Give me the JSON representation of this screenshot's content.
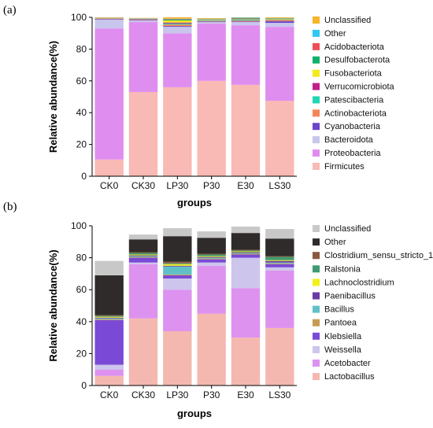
{
  "chart_data": [
    {
      "panel_label": "(a)",
      "type": "bar",
      "stacked": true,
      "categories": [
        "CK0",
        "CK30",
        "LP30",
        "P30",
        "E30",
        "LS30"
      ],
      "xlabel": "groups",
      "ylabel": "Relative abundance(%)",
      "ylim": [
        0,
        100
      ],
      "yticks": [
        0,
        20,
        40,
        60,
        80,
        100
      ],
      "legend_position": "right",
      "series": [
        {
          "name": "Firmicutes",
          "color": "#f9b9b4",
          "values": [
            10.5,
            53,
            56,
            60,
            57.5,
            47.5
          ]
        },
        {
          "name": "Proteobacteria",
          "color": "#df8ef0",
          "values": [
            82.5,
            44,
            34,
            36,
            37.5,
            46.5
          ]
        },
        {
          "name": "Bacteroidota",
          "color": "#c8c6ec",
          "values": [
            5.5,
            1,
            4,
            1,
            2,
            2.5
          ]
        },
        {
          "name": "Cyanobacteria",
          "color": "#6c44c9",
          "values": [
            0.4,
            0.3,
            0.5,
            0.3,
            0.4,
            1
          ]
        },
        {
          "name": "Actinobacteriota",
          "color": "#f4855b",
          "values": [
            0.3,
            0.3,
            1,
            0.3,
            0.6,
            0.6
          ]
        },
        {
          "name": "Patescibacteria",
          "color": "#20d6b0",
          "values": [
            0.1,
            0.2,
            0.6,
            0.3,
            0.6,
            0.2
          ]
        },
        {
          "name": "Verrucomicrobiota",
          "color": "#c21f8a",
          "values": [
            0.1,
            0.2,
            0.6,
            0.2,
            0.2,
            0.2
          ]
        },
        {
          "name": "Fusobacteriota",
          "color": "#f2ea1c",
          "values": [
            0.1,
            0.1,
            1.3,
            0.3,
            0.2,
            0.4
          ]
        },
        {
          "name": "Desulfobacterota",
          "color": "#12b06a",
          "values": [
            0.1,
            0.1,
            0.5,
            0.3,
            0.3,
            0.3
          ]
        },
        {
          "name": "Acidobacteriota",
          "color": "#ef4c56",
          "values": [
            0.1,
            0.1,
            0.3,
            0.2,
            0.2,
            0.2
          ]
        },
        {
          "name": "Other",
          "color": "#2ec8f0",
          "values": [
            0.1,
            0.1,
            0.3,
            0.2,
            0.3,
            0.2
          ]
        },
        {
          "name": "Unclassified",
          "color": "#f8b42a",
          "values": [
            0.2,
            0.2,
            0.9,
            0.4,
            0.2,
            0.4
          ]
        }
      ]
    },
    {
      "panel_label": "(b)",
      "type": "bar",
      "stacked": true,
      "categories": [
        "CK0",
        "CK30",
        "LP30",
        "P30",
        "E30",
        "LS30"
      ],
      "xlabel": "groups",
      "ylabel": "Relative abundance(%)",
      "ylim": [
        0,
        100
      ],
      "yticks": [
        0,
        20,
        40,
        60,
        80,
        100
      ],
      "legend_position": "right",
      "series": [
        {
          "name": "Lactobacillus",
          "color": "#f4b8b0",
          "values": [
            6,
            42,
            34,
            45,
            30,
            36
          ]
        },
        {
          "name": "Acetobacter",
          "color": "#dd92ef",
          "values": [
            4,
            34,
            26,
            30,
            31,
            36
          ]
        },
        {
          "name": "Weissella",
          "color": "#cdc5ec",
          "values": [
            3,
            1,
            7,
            2,
            19,
            2
          ]
        },
        {
          "name": "Klebsiella",
          "color": "#7a4ad6",
          "values": [
            28,
            3,
            2,
            2,
            2,
            2
          ]
        },
        {
          "name": "Pantoea",
          "color": "#c79a52",
          "values": [
            0.5,
            0.5,
            0.5,
            0.5,
            0.5,
            0.5
          ]
        },
        {
          "name": "Bacillus",
          "color": "#5fc1c7",
          "values": [
            0.5,
            0.5,
            5,
            0.5,
            0.5,
            0.5
          ]
        },
        {
          "name": "Paenibacillus",
          "color": "#6a3aa2",
          "values": [
            0.5,
            0.5,
            0.5,
            0.5,
            0.5,
            1
          ]
        },
        {
          "name": "Lachnoclostridium",
          "color": "#f2ef1a",
          "values": [
            0.5,
            0.5,
            1,
            0.5,
            0.5,
            0.5
          ]
        },
        {
          "name": "Ralstonia",
          "color": "#3e9a72",
          "values": [
            0.5,
            1,
            0.5,
            1,
            0.5,
            2
          ]
        },
        {
          "name": "Clostridium_sensu_stricto_1",
          "color": "#8a5a3c",
          "values": [
            0.5,
            0.5,
            1,
            0.5,
            0.5,
            0.5
          ]
        },
        {
          "name": "Other",
          "color": "#2f2b2b",
          "values": [
            25,
            8,
            16,
            10,
            10.5,
            11
          ]
        },
        {
          "name": "Unclassified",
          "color": "#c8c8c8",
          "values": [
            9,
            3,
            5,
            4,
            4,
            6
          ]
        }
      ]
    }
  ]
}
